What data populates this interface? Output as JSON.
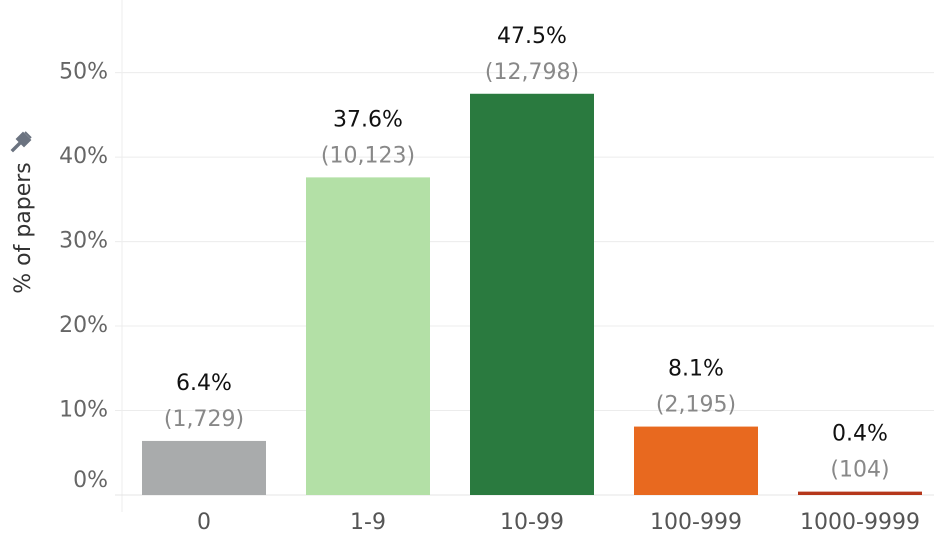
{
  "chart_data": {
    "type": "bar",
    "y_label": "% of papers",
    "categories": [
      "0",
      "1-9",
      "10-99",
      "100-999",
      "1000-9999"
    ],
    "values": [
      6.4,
      37.6,
      47.5,
      8.1,
      0.4
    ],
    "value_labels": [
      "6.4%",
      "37.6%",
      "47.5%",
      "8.1%",
      "0.4%"
    ],
    "counts": [
      1729,
      10123,
      12798,
      2195,
      104
    ],
    "count_labels": [
      "(1,729)",
      "(10,123)",
      "(12,798)",
      "(2,195)",
      "(104)"
    ],
    "colors": [
      "#a9abac",
      "#b3e0a6",
      "#2a7a3f",
      "#e8691f",
      "#b5371b"
    ],
    "ylim": [
      0,
      58.6
    ],
    "yticks": [
      {
        "value": 0,
        "label": "0%"
      },
      {
        "value": 10,
        "label": "10%"
      },
      {
        "value": 20,
        "label": "20%"
      },
      {
        "value": 30,
        "label": "30%"
      },
      {
        "value": 40,
        "label": "40%"
      },
      {
        "value": 50,
        "label": "50%"
      }
    ],
    "grid": true
  }
}
